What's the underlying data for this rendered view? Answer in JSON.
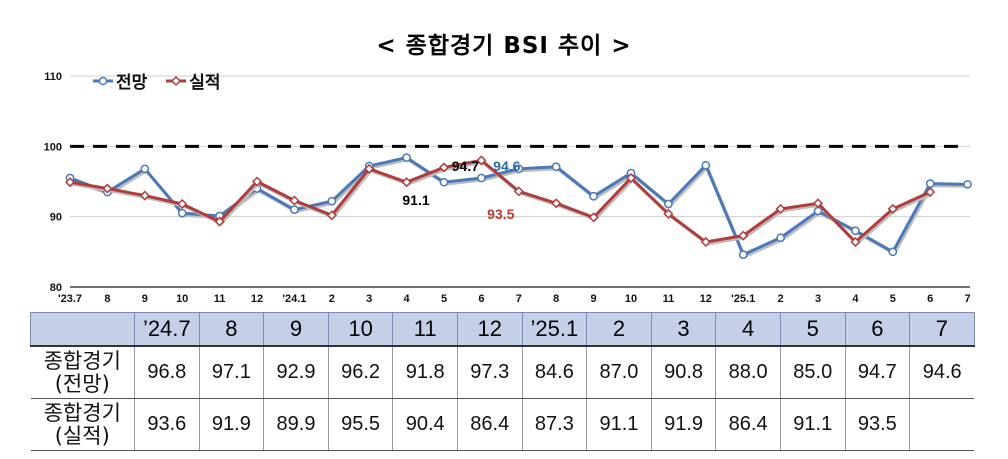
{
  "title": "< 종합경기 BSI 추이 >",
  "chart_data": {
    "type": "line",
    "x": [
      "'23.7",
      "8",
      "9",
      "10",
      "11",
      "12",
      "'24.1",
      "2",
      "3",
      "4",
      "5",
      "6",
      "7",
      "8",
      "9",
      "10",
      "11",
      "12",
      "'25.1",
      "2",
      "3",
      "4",
      "5",
      "6",
      "7"
    ],
    "ylim": [
      80,
      110
    ],
    "yticks": [
      "80",
      "90",
      "100",
      "110"
    ],
    "reference_line": 100,
    "series": [
      {
        "name": "전망",
        "color": "#4a78b8",
        "values": [
          95.5,
          93.5,
          96.8,
          90.5,
          90.1,
          94.0,
          91.0,
          92.2,
          97.2,
          98.4,
          94.9,
          95.5,
          96.8,
          97.1,
          92.9,
          96.2,
          91.8,
          97.3,
          84.6,
          87.0,
          90.8,
          88.0,
          85.0,
          94.7,
          94.6
        ]
      },
      {
        "name": "실적",
        "color": "#b03c3c",
        "values": [
          94.9,
          94.0,
          93.0,
          91.8,
          89.3,
          95.0,
          92.3,
          90.2,
          96.8,
          94.9,
          97.0,
          98.0,
          93.6,
          91.9,
          89.9,
          95.5,
          90.4,
          86.4,
          87.3,
          91.1,
          91.9,
          86.4,
          91.1,
          93.5,
          null
        ]
      }
    ],
    "annotations": [
      {
        "text": "94.7",
        "x": "6",
        "color": "#000000"
      },
      {
        "text": "94.6",
        "x": "7",
        "color": "#2f6aa8"
      },
      {
        "text": "91.1",
        "x": "5",
        "color": "#000000"
      },
      {
        "text": "93.5",
        "x": "7",
        "color": "#c0392b"
      }
    ]
  },
  "legend": {
    "forecast": "전망",
    "actual": "실적"
  },
  "table": {
    "headers": [
      "",
      "’24.7",
      "8",
      "9",
      "10",
      "11",
      "12",
      "’25.1",
      "2",
      "3",
      "4",
      "5",
      "6",
      "7"
    ],
    "rows": [
      {
        "label1": "종합경기",
        "label2": "(전망)",
        "values": [
          "96.8",
          "97.1",
          "92.9",
          "96.2",
          "91.8",
          "97.3",
          "84.6",
          "87.0",
          "90.8",
          "88.0",
          "85.0",
          "94.7",
          "94.6"
        ]
      },
      {
        "label1": "종합경기",
        "label2": "(실적)",
        "values": [
          "93.6",
          "91.9",
          "89.9",
          "95.5",
          "90.4",
          "86.4",
          "87.3",
          "91.1",
          "91.9",
          "86.4",
          "91.1",
          "93.5",
          ""
        ]
      }
    ]
  }
}
